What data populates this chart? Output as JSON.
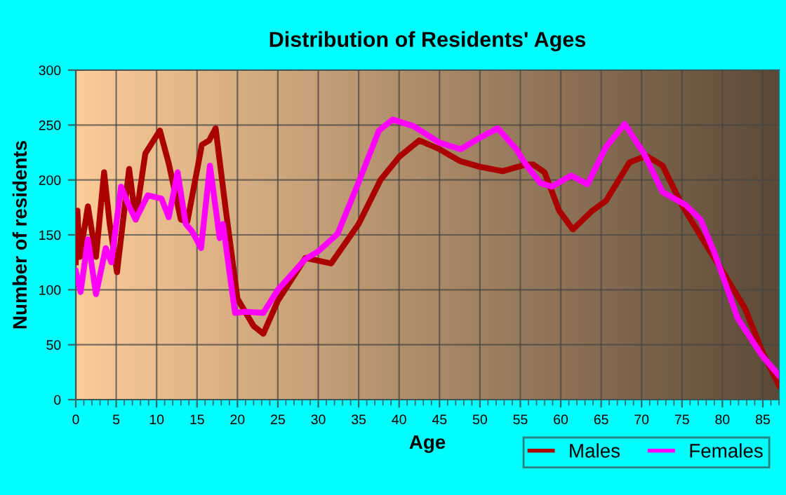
{
  "chart_data": {
    "type": "line",
    "title": "Distribution of Residents' Ages",
    "xlabel": "Age",
    "ylabel": "Number of residents",
    "xlim": [
      0,
      87
    ],
    "xticks": [
      0,
      5,
      10,
      15,
      20,
      25,
      30,
      35,
      40,
      45,
      50,
      55,
      60,
      65,
      70,
      75,
      80,
      85
    ],
    "ylim": [
      0,
      300
    ],
    "yticks": [
      0,
      50,
      100,
      150,
      200,
      250,
      300
    ],
    "grid": true,
    "legend": "bottom right",
    "line_style": "solid",
    "marker": "none",
    "series": [
      {
        "name": "Males",
        "color": "#aa0000",
        "x": [
          0,
          0.2,
          0.5,
          1.5,
          2.5,
          3.5,
          4.2,
          5.1,
          6.6,
          7.4,
          8.6,
          10.4,
          11.5,
          13,
          13.8,
          15.6,
          16.5,
          17.3,
          18.5,
          20,
          22,
          23.2,
          25,
          28.4,
          31.6,
          35,
          37.7,
          40,
          42.5,
          45,
          47.6,
          50,
          52.8,
          55.7,
          56.6,
          58,
          59.8,
          61.5,
          63.9,
          65.6,
          68.5,
          70.6,
          72.6,
          75,
          77.8,
          80,
          82.8,
          85.1,
          87
        ],
        "values": [
          125,
          172,
          130,
          176,
          130,
          207,
          160,
          116,
          210,
          164,
          224,
          245,
          215,
          164,
          162,
          232,
          236,
          247,
          176,
          92,
          67,
          60,
          90,
          129,
          124,
          160,
          200,
          221,
          236,
          228,
          217,
          212,
          208,
          214,
          214,
          207,
          172,
          155,
          172,
          181,
          216,
          222,
          213,
          177,
          143,
          117,
          83,
          41,
          13
        ]
      },
      {
        "name": "Females",
        "color": "#ff00ff",
        "x": [
          0,
          0.6,
          1.5,
          2.5,
          3.7,
          4.4,
          5.6,
          6.6,
          7.4,
          8.9,
          10.6,
          11.5,
          12.6,
          13.6,
          14.4,
          15.5,
          16.6,
          17.8,
          18.2,
          19.7,
          21,
          23.2,
          25,
          28.4,
          30,
          32.4,
          35,
          37.5,
          39.2,
          41.8,
          45,
          47.6,
          49.9,
          52.2,
          54.5,
          55.7,
          57.5,
          58.9,
          61.3,
          63.3,
          65.6,
          67.9,
          70.3,
          72.6,
          75.5,
          77.3,
          79,
          81.9,
          84.8,
          87
        ],
        "values": [
          117,
          98,
          146,
          96,
          138,
          125,
          194,
          176,
          164,
          186,
          183,
          166,
          207,
          160,
          153,
          138,
          213,
          147,
          160,
          79,
          80,
          79,
          100,
          128,
          135,
          151,
          198,
          245,
          255,
          249,
          234,
          228,
          238,
          247,
          228,
          214,
          197,
          194,
          204,
          196,
          230,
          251,
          224,
          189,
          177,
          164,
          134,
          74,
          41,
          22
        ]
      }
    ]
  }
}
